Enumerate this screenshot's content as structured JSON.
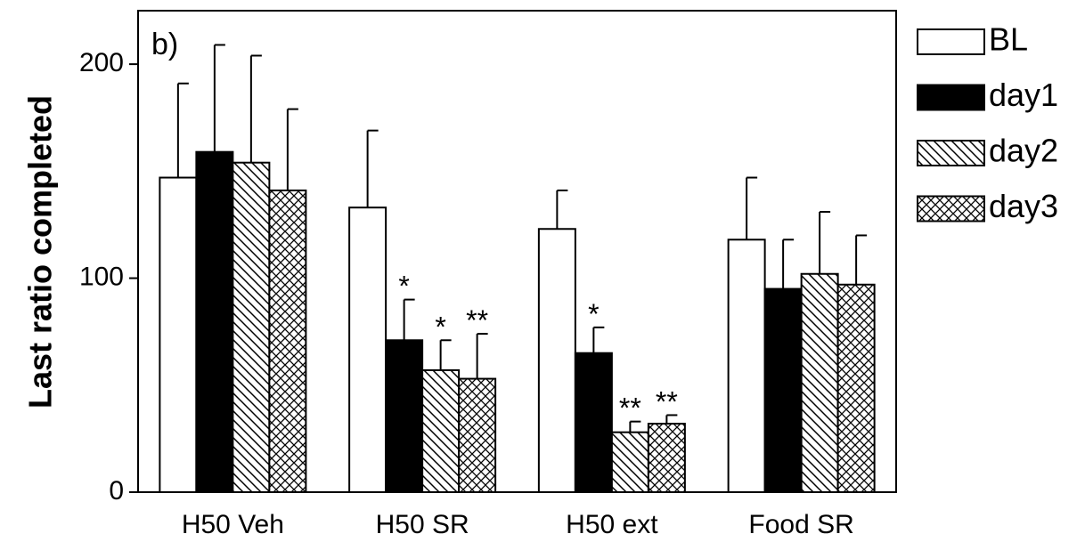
{
  "chart_data": {
    "type": "bar",
    "panel_label": "b)",
    "ylabel": "Last ratio completed",
    "categories": [
      "H50 Veh",
      "H50 SR",
      "H50 ext",
      "Food SR"
    ],
    "series": [
      {
        "name": "BL",
        "color": "#ffffff",
        "hatch": "none",
        "values": [
          147,
          133,
          123,
          118
        ],
        "errors": [
          44,
          36,
          18,
          29
        ],
        "annotations": [
          null,
          null,
          null,
          null
        ]
      },
      {
        "name": "day1",
        "color": "#000000",
        "hatch": "none",
        "values": [
          159,
          71,
          65,
          95
        ],
        "errors": [
          50,
          19,
          12,
          23
        ],
        "annotations": [
          null,
          "*",
          "*",
          null
        ]
      },
      {
        "name": "day2",
        "color": "#ffffff",
        "hatch": "diagonal",
        "values": [
          154,
          57,
          28,
          102
        ],
        "errors": [
          50,
          14,
          5,
          29
        ],
        "annotations": [
          null,
          "*",
          "**",
          null
        ]
      },
      {
        "name": "day3",
        "color": "#ffffff",
        "hatch": "crosshatch",
        "values": [
          141,
          53,
          32,
          97
        ],
        "errors": [
          38,
          21,
          4,
          23
        ],
        "annotations": [
          null,
          "**",
          "**",
          null
        ]
      }
    ],
    "ylim": [
      0,
      225
    ],
    "yticks": [
      0,
      100,
      200
    ],
    "legend": "right"
  }
}
